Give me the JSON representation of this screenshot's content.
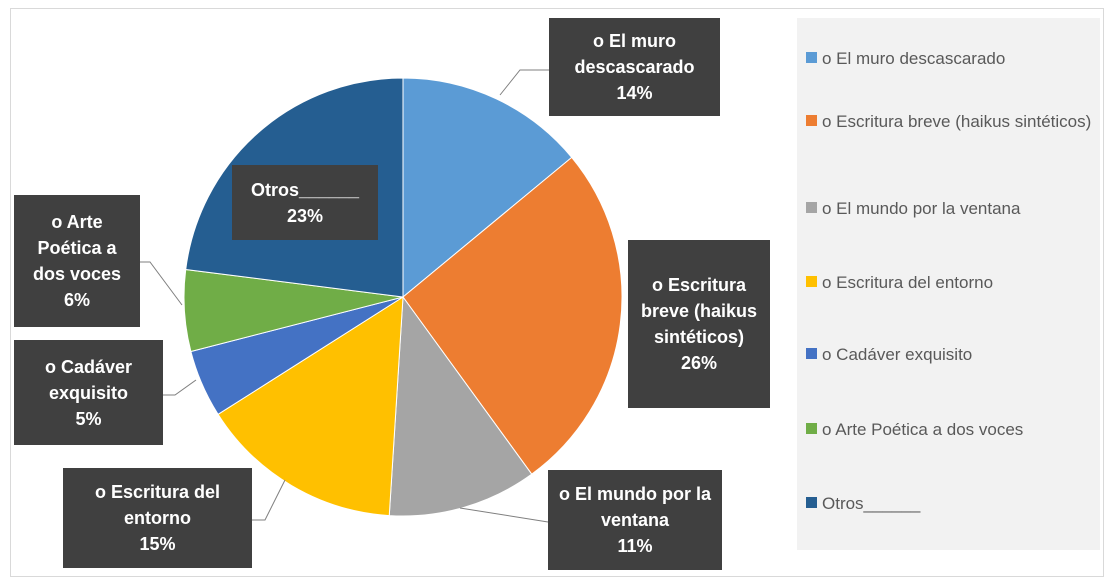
{
  "chart_data": {
    "type": "pie",
    "categories": [
      "o El muro descascarado",
      "o Escritura breve (haikus sintéticos)",
      "o El mundo por la ventana",
      "o Escritura del entorno",
      "o Cadáver exquisito",
      "o Arte Poética a dos voces",
      "Otros______"
    ],
    "values": [
      14,
      26,
      11,
      15,
      5,
      6,
      23
    ],
    "value_labels": [
      "14%",
      "26%",
      "11%",
      "15%",
      "5%",
      "6%",
      "23%"
    ],
    "colors": [
      "#5b9bd5",
      "#ed7d31",
      "#a5a5a5",
      "#ffc000",
      "#4472c4",
      "#70ad47",
      "#255e91"
    ],
    "legend": "right"
  }
}
